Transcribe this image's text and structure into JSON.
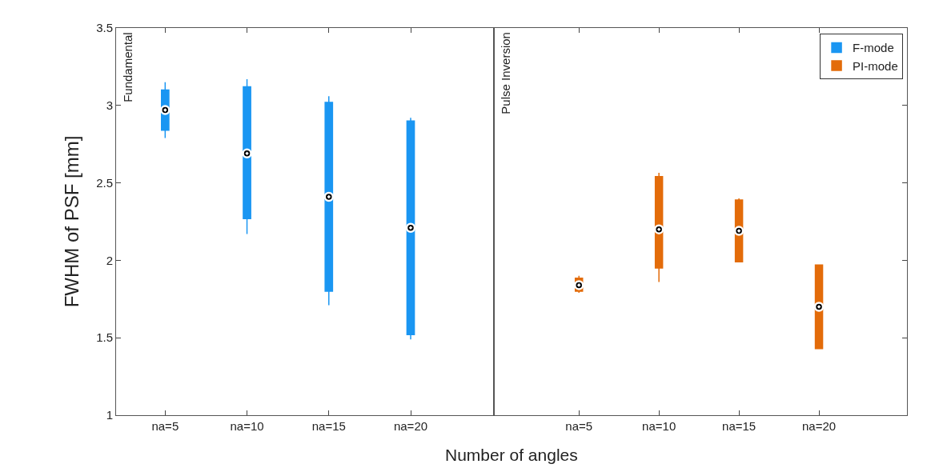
{
  "chart_data": [
    {
      "type": "box",
      "categories": [
        "na=5",
        "na=10",
        "na=15",
        "na=20"
      ],
      "ylabel": "FWHM of PSF [mm]",
      "xlabel": "Number of angles",
      "ylim": [
        1,
        3.5
      ],
      "yticks": [
        1,
        1.5,
        2,
        2.5,
        3,
        3.5
      ],
      "annotations": [
        "Fundamental"
      ],
      "legend": "top right",
      "series": [
        {
          "name": "F-mode",
          "color": "#1a96f2",
          "boxes": [
            {
              "low": 2.79,
              "q1": 2.84,
              "median": 2.97,
              "q3": 3.1,
              "high": 3.15
            },
            {
              "low": 2.17,
              "q1": 2.27,
              "median": 2.69,
              "q3": 3.12,
              "high": 3.17
            },
            {
              "low": 1.71,
              "q1": 1.8,
              "median": 2.41,
              "q3": 3.02,
              "high": 3.06
            },
            {
              "low": 1.49,
              "q1": 1.52,
              "median": 2.21,
              "q3": 2.9,
              "high": 2.92
            }
          ]
        }
      ]
    },
    {
      "type": "box",
      "categories": [
        "na=5",
        "na=10",
        "na=15",
        "na=20"
      ],
      "ylim": [
        1,
        3.5
      ],
      "yticks": [
        1,
        1.5,
        2,
        2.5,
        3,
        3.5
      ],
      "tick_labels": "x",
      "annotations": [
        "Pulse Inversion"
      ],
      "legend": "top right",
      "series": [
        {
          "name": "PI-mode",
          "color": "#e36c0a",
          "boxes": [
            {
              "low": 1.79,
              "q1": 1.8,
              "median": 1.84,
              "q3": 1.885,
              "high": 1.9
            },
            {
              "low": 1.86,
              "q1": 1.95,
              "median": 2.2,
              "q3": 2.54,
              "high": 2.565
            },
            {
              "low": 1.99,
              "q1": 1.99,
              "median": 2.19,
              "q3": 2.39,
              "high": 2.4
            },
            {
              "low": 1.43,
              "q1": 1.43,
              "median": 1.7,
              "q3": 1.97,
              "high": 1.97
            }
          ]
        }
      ]
    }
  ]
}
